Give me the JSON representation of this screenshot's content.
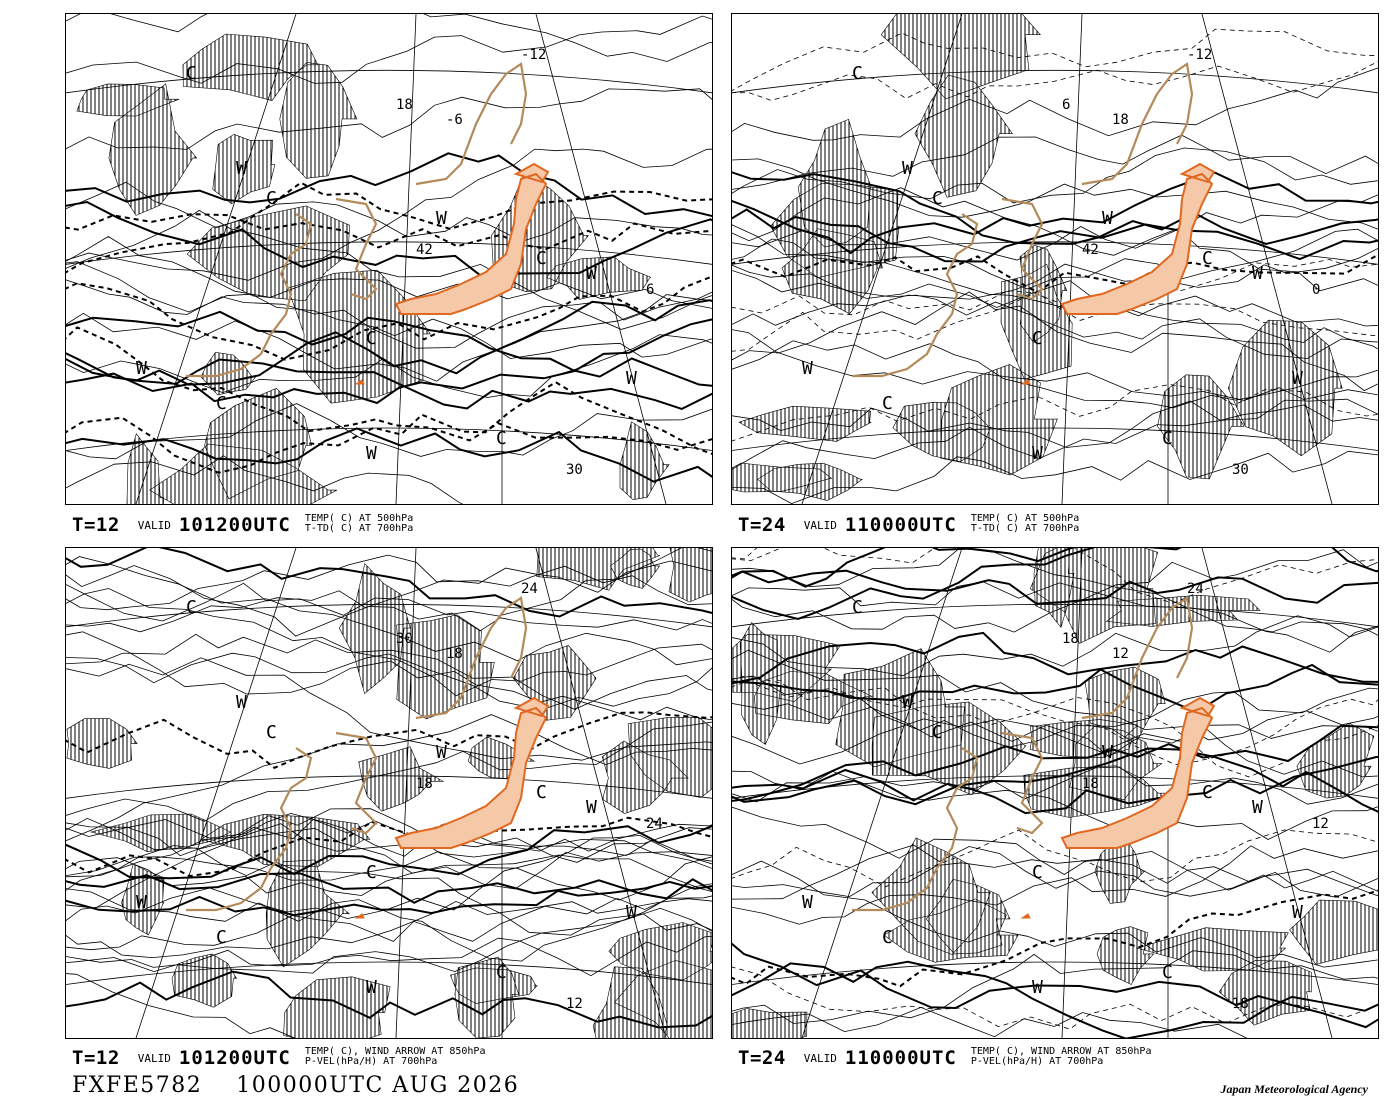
{
  "panels": [
    {
      "id": "top-left",
      "t_label": "T=12",
      "valid_label": "VALID",
      "valid_time": "101200UTC",
      "desc_line1": "TEMP( C) AT 500hPa",
      "desc_line2": "T-TD( C) AT 700hPa",
      "labels": [
        {
          "t": "C"
        },
        {
          "t": "C"
        },
        {
          "t": "C"
        },
        {
          "t": "C"
        },
        {
          "t": "C"
        },
        {
          "t": "C"
        },
        {
          "t": "W"
        },
        {
          "t": "W"
        },
        {
          "t": "W"
        },
        {
          "t": "W"
        },
        {
          "t": "W"
        },
        {
          "t": "W"
        },
        {
          "t": "-12"
        },
        {
          "t": "-6"
        },
        {
          "t": "30"
        },
        {
          "t": "42"
        },
        {
          "t": "18"
        },
        {
          "t": "6"
        }
      ]
    },
    {
      "id": "top-right",
      "t_label": "T=24",
      "valid_label": "VALID",
      "valid_time": "110000UTC",
      "desc_line1": "TEMP( C) AT 500hPa",
      "desc_line2": "T-TD( C) AT 700hPa",
      "labels": [
        {
          "t": "C"
        },
        {
          "t": "C"
        },
        {
          "t": "C"
        },
        {
          "t": "C"
        },
        {
          "t": "C"
        },
        {
          "t": "C"
        },
        {
          "t": "W"
        },
        {
          "t": "W"
        },
        {
          "t": "W"
        },
        {
          "t": "W"
        },
        {
          "t": "W"
        },
        {
          "t": "W"
        },
        {
          "t": "-12"
        },
        {
          "t": "18"
        },
        {
          "t": "30"
        },
        {
          "t": "42"
        },
        {
          "t": "6"
        },
        {
          "t": "0"
        }
      ]
    },
    {
      "id": "bottom-left",
      "t_label": "T=12",
      "valid_label": "VALID",
      "valid_time": "101200UTC",
      "desc_line1": "TEMP( C), WIND ARROW AT 850hPa",
      "desc_line2": "P-VEL(hPa/H) AT 700hPa",
      "labels": [
        {
          "t": "C"
        },
        {
          "t": "C"
        },
        {
          "t": "C"
        },
        {
          "t": "C"
        },
        {
          "t": "C"
        },
        {
          "t": "C"
        },
        {
          "t": "W"
        },
        {
          "t": "W"
        },
        {
          "t": "W"
        },
        {
          "t": "W"
        },
        {
          "t": "W"
        },
        {
          "t": "W"
        },
        {
          "t": "24"
        },
        {
          "t": "18"
        },
        {
          "t": "12"
        },
        {
          "t": "18"
        },
        {
          "t": "30"
        },
        {
          "t": "24"
        }
      ]
    },
    {
      "id": "bottom-right",
      "t_label": "T=24",
      "valid_label": "VALID",
      "valid_time": "110000UTC",
      "desc_line1": "TEMP( C), WIND ARROW AT 850hPa",
      "desc_line2": "P-VEL(hPa/H) AT 700hPa",
      "labels": [
        {
          "t": "C"
        },
        {
          "t": "C"
        },
        {
          "t": "C"
        },
        {
          "t": "C"
        },
        {
          "t": "C"
        },
        {
          "t": "C"
        },
        {
          "t": "W"
        },
        {
          "t": "W"
        },
        {
          "t": "W"
        },
        {
          "t": "W"
        },
        {
          "t": "W"
        },
        {
          "t": "W"
        },
        {
          "t": "24"
        },
        {
          "t": "12"
        },
        {
          "t": "18"
        },
        {
          "t": "18"
        },
        {
          "t": "18"
        },
        {
          "t": "12"
        }
      ]
    }
  ],
  "footer": {
    "chart_code": "FXFE5782",
    "issue_time": "100000UTC AUG 2026",
    "agency": "Japan Meteorological Agency"
  },
  "colors": {
    "coastline": "#b38a5a",
    "japan_fill": "#f5c8a8",
    "japan_outline": "#e06820",
    "hatch": "#000000"
  }
}
